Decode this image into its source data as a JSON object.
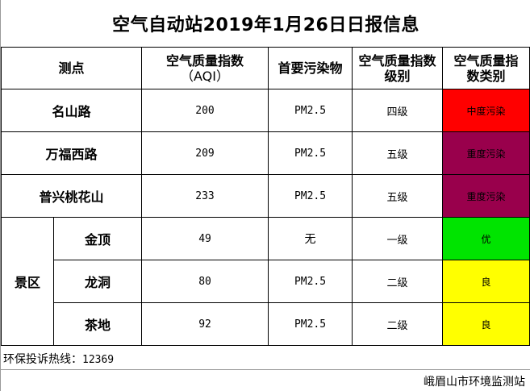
{
  "report": {
    "title": "空气自动站2019年1月26日日报信息",
    "columns": {
      "station": "测点",
      "aqi": [
        "空气质量指数",
        "（AQI）"
      ],
      "pollutant": "首要污染物",
      "level": [
        "空气质量指数",
        "级别"
      ],
      "category": [
        "空气质量指",
        "数类别"
      ]
    },
    "rows": [
      {
        "station": "名山路",
        "aqi": "200",
        "pollutant": "PM2.5",
        "level": "四级",
        "category": "中度污染",
        "color": "#ff0000"
      },
      {
        "station": "万福西路",
        "aqi": "209",
        "pollutant": "PM2.5",
        "level": "五级",
        "category": "重度污染",
        "color": "#99004c"
      },
      {
        "station": "普兴桃花山",
        "aqi": "233",
        "pollutant": "PM2.5",
        "level": "五级",
        "category": "重度污染",
        "color": "#99004c"
      }
    ],
    "scenic": {
      "label": "景区",
      "rows": [
        {
          "station": "金顶",
          "aqi": "49",
          "pollutant": "无",
          "level": "一级",
          "category": "优",
          "color": "#00e400"
        },
        {
          "station": "龙洞",
          "aqi": "80",
          "pollutant": "PM2.5",
          "level": "二级",
          "category": "良",
          "color": "#ffff00"
        },
        {
          "station": "茶地",
          "aqi": "92",
          "pollutant": "PM2.5",
          "level": "二级",
          "category": "良",
          "color": "#ffff00"
        }
      ]
    },
    "hotline": {
      "label": "环保投诉热线：",
      "number": "12369"
    },
    "publisher": "峨眉山市环境监测站"
  }
}
